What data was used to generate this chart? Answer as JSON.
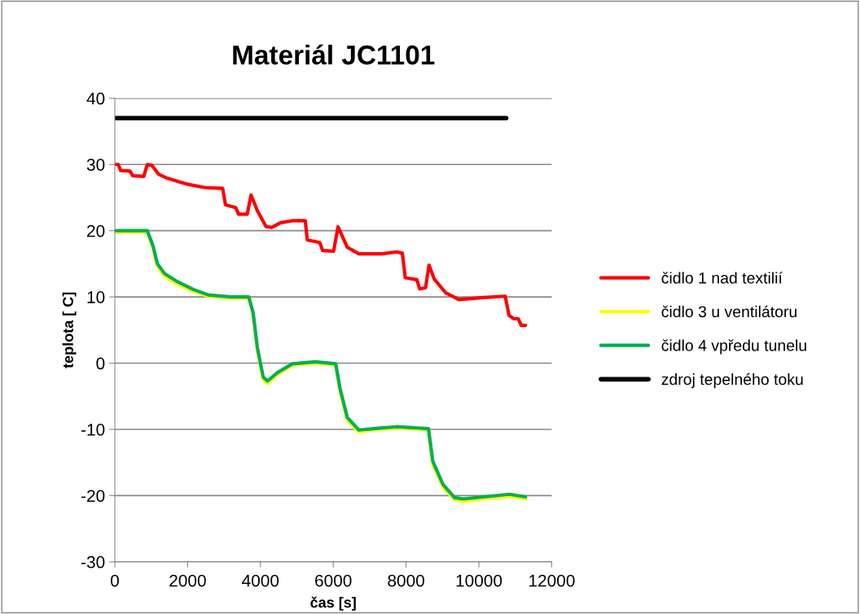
{
  "chart_data": {
    "type": "line",
    "title": "Materiál JC1101",
    "xlabel": "čas [s]",
    "ylabel": "teplota [ C]",
    "xlim": [
      0,
      12000
    ],
    "xticks": [
      0,
      2000,
      4000,
      6000,
      8000,
      10000,
      12000
    ],
    "ylim": [
      -30,
      40
    ],
    "yticks": [
      -30,
      -20,
      -10,
      0,
      10,
      20,
      30,
      40
    ],
    "grid": "y",
    "legend": "right",
    "marker": "none",
    "line_style": "solid",
    "series": [
      {
        "name": "čidlo 1 nad textilií",
        "color": "#ff0000",
        "x": [
          0,
          95,
          159,
          414,
          494,
          796,
          892,
          1011,
          1210,
          1449,
          2006,
          2484,
          2962,
          3041,
          3320,
          3400,
          3639,
          3742,
          3917,
          4156,
          4315,
          4554,
          4873,
          5231,
          5287,
          5629,
          5709,
          6011,
          6131,
          6386,
          6704,
          7341,
          7739,
          7898,
          7978,
          8296,
          8376,
          8535,
          8631,
          8774,
          9092,
          9451,
          10127,
          10724,
          10828,
          10963,
          11083,
          11162,
          11282
        ],
        "values": [
          30,
          30,
          29.1,
          29,
          28.3,
          28.2,
          30,
          29.9,
          28.5,
          27.9,
          27,
          26.5,
          26.4,
          23.9,
          23.5,
          22.5,
          22.5,
          25.4,
          23,
          20.6,
          20.5,
          21.2,
          21.5,
          21.5,
          18.6,
          18.2,
          17,
          16.9,
          20.6,
          17.5,
          16.5,
          16.5,
          16.8,
          16.6,
          12.9,
          12.6,
          11.2,
          11.4,
          14.8,
          12.7,
          10.6,
          9.6,
          9.9,
          10.1,
          7.2,
          6.7,
          6.7,
          5.7,
          5.7
        ]
      },
      {
        "name": "čidlo 3 u ventilátoru",
        "color": "#ffff00",
        "x": [
          0,
          892,
          1051,
          1170,
          1369,
          1688,
          2166,
          2564,
          3200,
          3680,
          3800,
          3917,
          4076,
          4195,
          4474,
          4873,
          5510,
          6067,
          6186,
          6386,
          6704,
          7102,
          7739,
          8615,
          8734,
          9013,
          9331,
          9570,
          10127,
          10844,
          11282
        ],
        "values": [
          19.8,
          19.8,
          17.3,
          14.6,
          13.1,
          12.0,
          10.8,
          10.1,
          9.8,
          9.8,
          7.3,
          2.0,
          -2.5,
          -3.1,
          -1.7,
          -0.3,
          0.0,
          -0.3,
          -4.2,
          -8.6,
          -10.4,
          -10.1,
          -9.8,
          -10.1,
          -15.3,
          -18.7,
          -20.6,
          -20.9,
          -20.5,
          -20.1,
          -20.5
        ]
      },
      {
        "name": "čidlo 4 vpředu tunelu",
        "color": "#00b050",
        "x": [
          0,
          892,
          1051,
          1170,
          1369,
          1688,
          2166,
          2564,
          3200,
          3680,
          3800,
          3917,
          4076,
          4195,
          4474,
          4873,
          5510,
          6067,
          6186,
          6386,
          6704,
          7102,
          7739,
          8615,
          8734,
          9013,
          9331,
          9570,
          10127,
          10844,
          11282
        ],
        "values": [
          20,
          20,
          17.7,
          15,
          13.5,
          12.4,
          11.1,
          10.3,
          10,
          10,
          7.6,
          2.3,
          -2.1,
          -2.7,
          -1.4,
          -0.1,
          0.2,
          -0.1,
          -3.8,
          -8.2,
          -10.1,
          -9.9,
          -9.6,
          -9.9,
          -14.8,
          -18.3,
          -20.3,
          -20.5,
          -20.2,
          -19.8,
          -20.2
        ]
      },
      {
        "name": "zdroj tepelného toku",
        "color": "#000000",
        "x": [
          0,
          10750
        ],
        "values": [
          37,
          37
        ]
      }
    ]
  }
}
